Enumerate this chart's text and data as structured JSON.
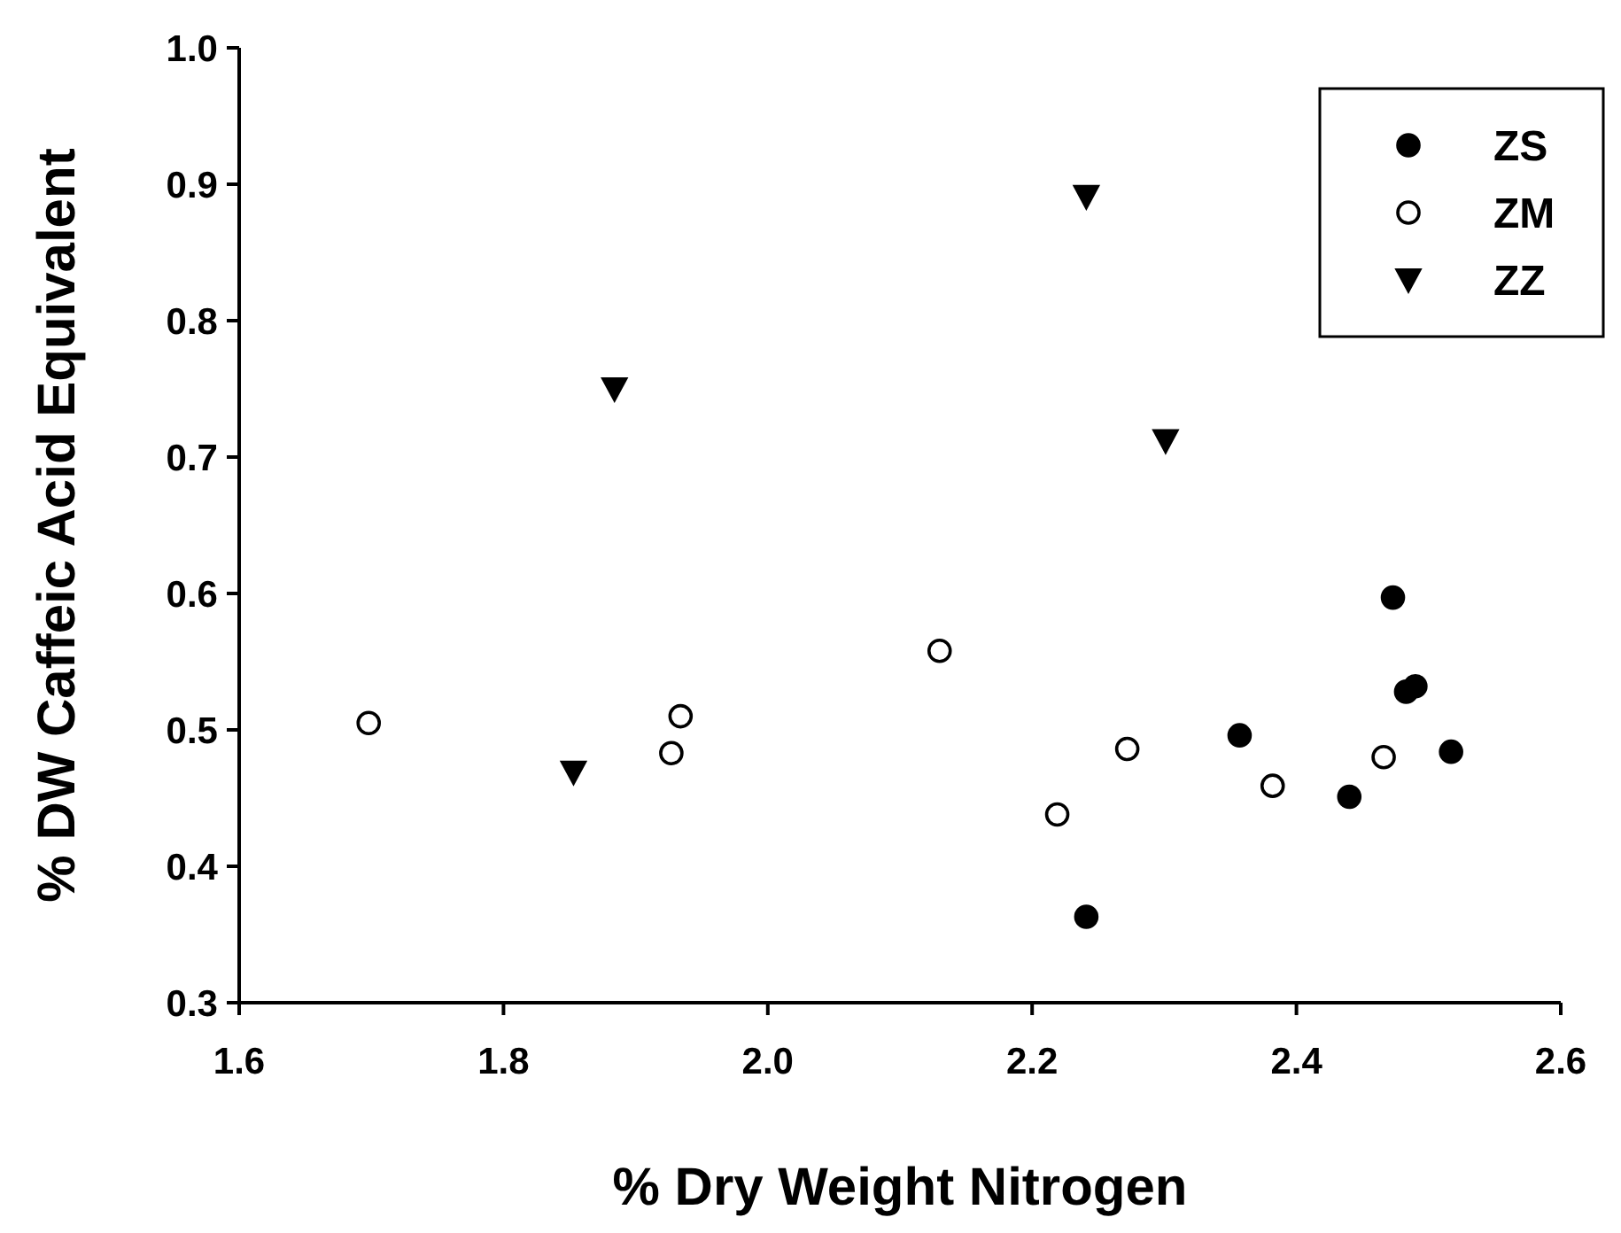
{
  "chart_data": {
    "type": "scatter",
    "xlabel": "% Dry Weight Nitrogen",
    "ylabel": "% DW Caffeic Acid Equivalent",
    "xlim": [
      1.6,
      2.6
    ],
    "xticks": [
      1.6,
      1.8,
      {
        "value": 2,
        "label": "2.0"
      },
      2.2,
      2.4,
      2.6
    ],
    "ylim": [
      0.3,
      1.0
    ],
    "yticks": [
      0.3,
      0.4,
      0.5,
      0.6,
      0.7,
      0.8,
      0.9,
      {
        "value": 1,
        "label": "1.0"
      }
    ],
    "grid": false,
    "legend": "top right",
    "series": [
      {
        "name": "ZS",
        "color": "#000000",
        "marker": "circle",
        "x": [
          2.357,
          2.241,
          2.473,
          2.483,
          2.49,
          2.517,
          2.44
        ],
        "values": [
          0.496,
          0.363,
          0.597,
          0.528,
          0.532,
          0.484,
          0.451
        ]
      },
      {
        "name": "ZM",
        "color": "#ffffff",
        "marker": "circle",
        "x": [
          1.698,
          1.934,
          1.927,
          2.13,
          2.219,
          2.272,
          2.382,
          2.466
        ],
        "values": [
          0.505,
          0.51,
          0.483,
          0.558,
          0.438,
          0.486,
          0.459,
          0.48
        ]
      },
      {
        "name": "ZZ",
        "color": "#000000",
        "marker": "triangle",
        "x": [
          1.853,
          1.884,
          2.241,
          2.301
        ],
        "values": [
          0.469,
          0.75,
          0.891,
          0.712
        ]
      }
    ]
  }
}
